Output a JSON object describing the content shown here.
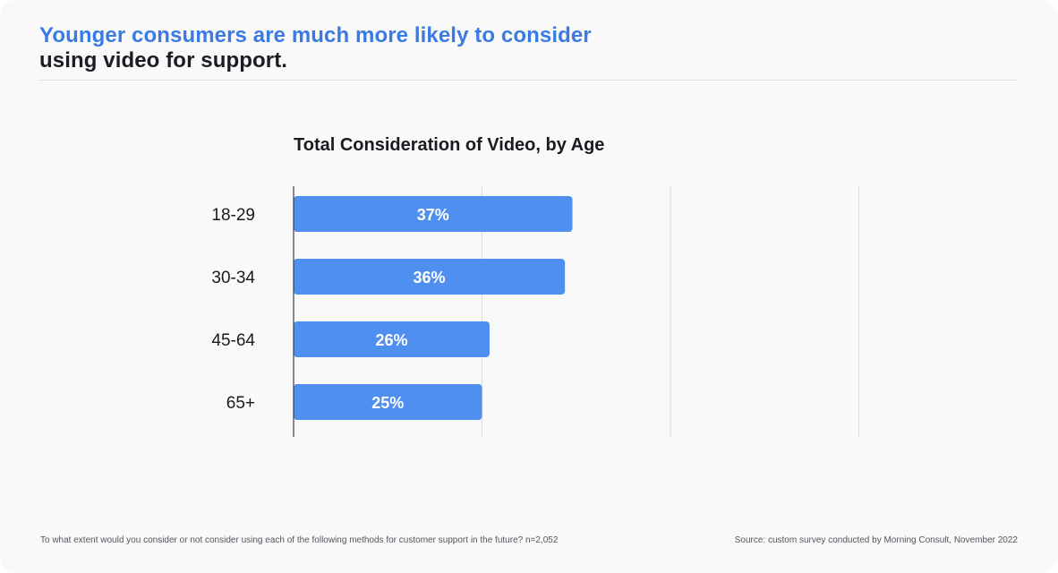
{
  "header": {
    "headline_accent": "Younger consumers are much more likely to consider",
    "headline_rest": "using video for support."
  },
  "footer": {
    "question": "To what extent would you consider or not consider using each of the following methods for customer support in the future? n=2,052",
    "source": "Source: custom survey conducted by Morning Consult, November 2022"
  },
  "colors": {
    "accent": "#3a7ae2",
    "bar": "#4f8ff0",
    "grid": "#dcdce0"
  },
  "chart_data": {
    "type": "bar",
    "orientation": "horizontal",
    "title": "Total Consideration of Video, by Age",
    "categories": [
      "18-29",
      "30-34",
      "45-64",
      "65+"
    ],
    "values": [
      37,
      36,
      26,
      25
    ],
    "value_labels": [
      "37%",
      "36%",
      "26%",
      "25%"
    ],
    "xlim": [
      0,
      100
    ],
    "grid": true,
    "legend": "none"
  }
}
